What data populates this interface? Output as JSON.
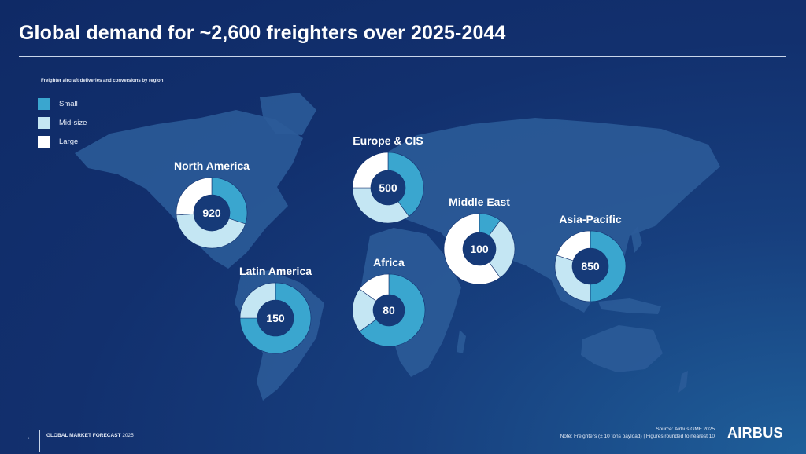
{
  "slide": {
    "title": "Global demand for ~2,600 freighters over 2025-2044",
    "subtitle": "Freighter aircraft deliveries and conversions by region",
    "page_number": "4",
    "footer_bold": "GLOBAL MARKET FORECAST",
    "footer_year": "2025",
    "source": "Source: Airbus GMF 2025",
    "note": "Note: Freighters (± 10 tons payload) | Figures rounded to nearest 10",
    "logo": "AIRBUS"
  },
  "colors": {
    "small": "#3aa6cf",
    "mid": "#c4e6f3",
    "large": "#ffffff",
    "land": "#2b5b98",
    "center": "#163a78"
  },
  "chart_data": {
    "type": "pie",
    "title": "Freighter aircraft deliveries and conversions by region",
    "legend": [
      "Small",
      "Mid-size",
      "Large"
    ],
    "legend_position": "top-left",
    "series": [
      {
        "name": "North America",
        "total": 920,
        "shares": {
          "small": 0.3,
          "mid": 0.44,
          "large": 0.26
        }
      },
      {
        "name": "Europe & CIS",
        "total": 500,
        "shares": {
          "small": 0.4,
          "mid": 0.35,
          "large": 0.25
        }
      },
      {
        "name": "Middle East",
        "total": 100,
        "shares": {
          "small": 0.1,
          "mid": 0.3,
          "large": 0.6
        }
      },
      {
        "name": "Asia-Pacific",
        "total": 850,
        "shares": {
          "small": 0.5,
          "mid": 0.3,
          "large": 0.2
        }
      },
      {
        "name": "Latin America",
        "total": 150,
        "shares": {
          "small": 0.75,
          "mid": 0.25,
          "large": 0.0
        }
      },
      {
        "name": "Africa",
        "total": 80,
        "shares": {
          "small": 0.65,
          "mid": 0.2,
          "large": 0.15
        }
      }
    ]
  }
}
